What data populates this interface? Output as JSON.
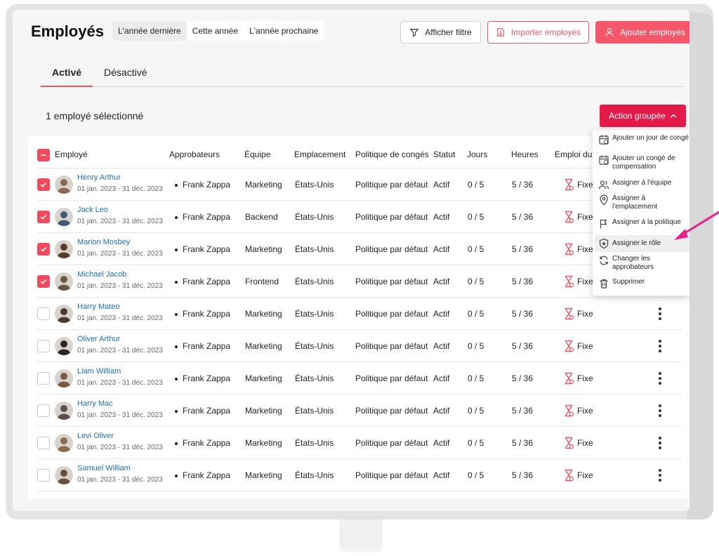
{
  "header": {
    "title": "Employés",
    "periods": [
      "L'année dernière",
      "Cette année",
      "L'année prochaine"
    ],
    "filter_label": "Afficher filtre",
    "import_label": "Importer employés",
    "add_label": "Ajouter employés"
  },
  "tabs": [
    "Activé",
    "Désactivé"
  ],
  "selection": {
    "count_label": "1 employé sélectionné",
    "bulk_action_label": "Action groupée"
  },
  "columns": [
    "Employé",
    "Approbateurs",
    "Équipe",
    "Emplacement",
    "Politique de congés",
    "Statut",
    "Jours",
    "Heures",
    "Emploi du t"
  ],
  "employees": [
    {
      "name": "Henry Arthur",
      "dates": "01 jan. 2023 - 31 déc. 2023",
      "approver": "Frank Zappa",
      "team": "Marketing",
      "location": "États-Unis",
      "policy": "Politique par défaut",
      "status": "Actif",
      "days": "0 / 5",
      "hours": "5 / 36",
      "schedule": "Fixe"
    },
    {
      "name": "Jack Leo",
      "dates": "01 jan. 2023 - 31 déc. 2023",
      "approver": "Frank Zappa",
      "team": "Backend",
      "location": "États-Unis",
      "policy": "Politique par défaut",
      "status": "Actif",
      "days": "0 / 5",
      "hours": "5 / 36",
      "schedule": "Fixe"
    },
    {
      "name": "Marion Mosbey",
      "dates": "01 jan. 2023 - 31 déc. 2023",
      "approver": "Frank Zappa",
      "team": "Marketing",
      "location": "États-Unis",
      "policy": "Politique par défaut",
      "status": "Actif",
      "days": "0 / 5",
      "hours": "5 / 36",
      "schedule": "Fixe"
    },
    {
      "name": "Michael Jacob",
      "dates": "01 jan. 2023 - 31 déc. 2023",
      "approver": "Frank Zappa",
      "team": "Frontend",
      "location": "États-Unis",
      "policy": "Politique par défaut",
      "status": "Actif",
      "days": "0 / 5",
      "hours": "5 / 36",
      "schedule": "Fixe"
    },
    {
      "name": "Harry Mateo",
      "dates": "01 jan. 2023 - 31 déc. 2023",
      "approver": "Frank Zappa",
      "team": "Marketing",
      "location": "États-Unis",
      "policy": "Politique par défaut",
      "status": "Actif",
      "days": "0 / 5",
      "hours": "5 / 36",
      "schedule": "Fixe"
    },
    {
      "name": "Oliver Arthur",
      "dates": "01 jan. 2023 - 31 déc. 2023",
      "approver": "Frank Zappa",
      "team": "Marketing",
      "location": "États-Unis",
      "policy": "Politique par défaut",
      "status": "Actif",
      "days": "0 / 5",
      "hours": "5 / 36",
      "schedule": "Fixe"
    },
    {
      "name": "Liam William",
      "dates": "01 jan. 2023 - 31 déc. 2023",
      "approver": "Frank Zappa",
      "team": "Marketing",
      "location": "États-Unis",
      "policy": "Politique par défaut",
      "status": "Actif",
      "days": "0 / 5",
      "hours": "5 / 36",
      "schedule": "Fixe"
    },
    {
      "name": "Harry Mac",
      "dates": "01 jan. 2023 - 31 déc. 2023",
      "approver": "Frank Zappa",
      "team": "Marketing",
      "location": "États-Unis",
      "policy": "Politique par défaut",
      "status": "Actif",
      "days": "0 / 5",
      "hours": "5 / 36",
      "schedule": "Fixe"
    },
    {
      "name": "Levi Oliver",
      "dates": "01 jan. 2023 - 31 déc. 2023",
      "approver": "Frank Zappa",
      "team": "Marketing",
      "location": "États-Unis",
      "policy": "Politique par défaut",
      "status": "Actif",
      "days": "0 / 5",
      "hours": "5 / 36",
      "schedule": "Fixe"
    },
    {
      "name": "Samuel William",
      "dates": "01 jan. 2023 - 31 déc. 2023",
      "approver": "Frank Zappa",
      "team": "Marketing",
      "location": "États-Unis",
      "policy": "Politique par défaut",
      "status": "Actif",
      "days": "0 / 5",
      "hours": "5 / 36",
      "schedule": "Fixe"
    }
  ],
  "bulk_menu": [
    {
      "label": "Ajouter un jour de congé",
      "icon": "calendar-plus-icon"
    },
    {
      "label": "Ajouter un congé de compensation",
      "icon": "calendar-clock-icon"
    },
    {
      "label": "Assigner à l'équipe",
      "icon": "users-icon"
    },
    {
      "label": "Assigner à l'emplacement",
      "icon": "map-pin-icon"
    },
    {
      "label": "Assigner à la politique",
      "icon": "flag-icon"
    },
    {
      "label": "Assigner le rôle",
      "icon": "shield-icon"
    },
    {
      "label": "Changer les approbateurs",
      "icon": "refresh-icon"
    },
    {
      "label": "Supprimer",
      "icon": "trash-icon"
    }
  ],
  "colors": {
    "accent": "#ef4a5e",
    "bulk": "#e5194a",
    "link": "#1f6fb0",
    "annotation": "#e8208c"
  }
}
